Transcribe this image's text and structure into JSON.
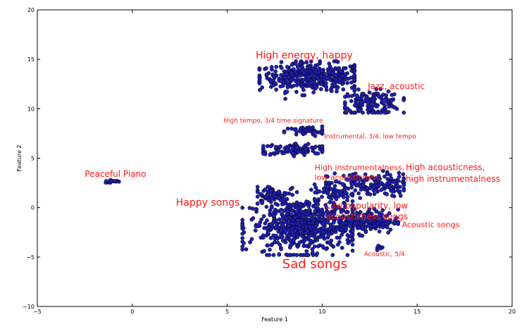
{
  "chart_data": {
    "type": "scatter",
    "xlabel": "Feature 1",
    "ylabel": "Feature 2",
    "xlim": [
      -5,
      20
    ],
    "ylim": [
      -10,
      20
    ],
    "xticks": [
      "−5",
      "0",
      "5",
      "10",
      "15",
      "20"
    ],
    "yticks": [
      "−10",
      "−5",
      "0",
      "5",
      "10",
      "15",
      "20"
    ],
    "grid": false,
    "marker_color": "#1f1fb4",
    "annotation_color": "#ff1a1a",
    "clusters": [
      {
        "cx": 9.5,
        "cy": 13.2,
        "sx": 1.4,
        "sy": 0.7,
        "n": 420,
        "xr": [
          6.7,
          11.7
        ],
        "yr": [
          11.0,
          14.8
        ]
      },
      {
        "cx": 12.6,
        "cy": 10.6,
        "sx": 0.8,
        "sy": 0.6,
        "n": 150,
        "xr": [
          11.2,
          14.3
        ],
        "yr": [
          9.6,
          12.0
        ]
      },
      {
        "cx": 9.2,
        "cy": 7.7,
        "sx": 0.6,
        "sy": 0.25,
        "n": 50,
        "xr": [
          8.0,
          10.0
        ],
        "yr": [
          7.2,
          8.3
        ]
      },
      {
        "cx": 8.7,
        "cy": 5.9,
        "sx": 1.0,
        "sy": 0.3,
        "n": 110,
        "xr": [
          6.9,
          10.0
        ],
        "yr": [
          5.2,
          6.6
        ]
      },
      {
        "cx": 12.5,
        "cy": 2.3,
        "sx": 1.1,
        "sy": 0.6,
        "n": 170,
        "xr": [
          10.2,
          14.3
        ],
        "yr": [
          0.8,
          4.1
        ]
      },
      {
        "cx": 9.0,
        "cy": -1.8,
        "sx": 1.4,
        "sy": 1.4,
        "n": 650,
        "xr": [
          5.8,
          11.6
        ],
        "yr": [
          -4.8,
          2.2
        ]
      },
      {
        "cx": 12.4,
        "cy": -1.4,
        "sx": 0.8,
        "sy": 0.6,
        "n": 160,
        "xr": [
          11.0,
          14.0
        ],
        "yr": [
          -3.0,
          0.6
        ]
      },
      {
        "cx": 7.4,
        "cy": 1.3,
        "sx": 0.5,
        "sy": 0.5,
        "n": 60,
        "xr": [
          6.6,
          8.4
        ],
        "yr": [
          0.4,
          2.1
        ]
      },
      {
        "cx": 10.6,
        "cy": 1.5,
        "sx": 0.6,
        "sy": 0.4,
        "n": 50,
        "xr": [
          9.6,
          11.6
        ],
        "yr": [
          0.6,
          2.4
        ]
      },
      {
        "cx": -1.0,
        "cy": 2.65,
        "sx": 0.25,
        "sy": 0.08,
        "n": 18,
        "xr": [
          -1.4,
          -0.7
        ],
        "yr": [
          2.5,
          2.8
        ]
      },
      {
        "cx": 13.0,
        "cy": -4.0,
        "sx": 0.1,
        "sy": 0.15,
        "n": 8,
        "xr": [
          12.8,
          13.2
        ],
        "yr": [
          -4.3,
          -3.8
        ]
      }
    ],
    "annotations": [
      {
        "text": "High energy, happy",
        "x": 6.5,
        "y": 15.1,
        "size": 14
      },
      {
        "text": "Jazz, acoustic",
        "x": 12.4,
        "y": 12.0,
        "size": 12
      },
      {
        "text": "High tempo, 3/4 time signature",
        "x": 4.8,
        "y": 8.6,
        "size": 9
      },
      {
        "text": "Instrumental, 3/4, low tempo",
        "x": 10.1,
        "y": 7.0,
        "size": 9
      },
      {
        "text": "Peaceful Piano",
        "x": -2.5,
        "y": 3.1,
        "size": 12
      },
      {
        "text": "High instrumentalness,",
        "x": 9.6,
        "y": 3.8,
        "size": 11
      },
      {
        "text": "low acousticness",
        "x": 9.6,
        "y": 2.8,
        "size": 11
      },
      {
        "text": "High acousticness,",
        "x": 14.4,
        "y": 3.8,
        "size": 12
      },
      {
        "text": "high instrumentalness",
        "x": 14.4,
        "y": 2.6,
        "size": 12
      },
      {
        "text": "Happy songs",
        "x": 2.3,
        "y": 0.2,
        "size": 14
      },
      {
        "text": "Low popularity, low",
        "x": 10.2,
        "y": -0.1,
        "size": 12
      },
      {
        "text": "acousticness songs",
        "x": 10.2,
        "y": -1.2,
        "size": 12
      },
      {
        "text": "Acoustic songs",
        "x": 14.2,
        "y": -2.0,
        "size": 11
      },
      {
        "text": "Acoustic, 5/4",
        "x": 12.2,
        "y": -4.9,
        "size": 9
      },
      {
        "text": "Sad songs",
        "x": 7.9,
        "y": -6.1,
        "size": 18
      }
    ]
  }
}
